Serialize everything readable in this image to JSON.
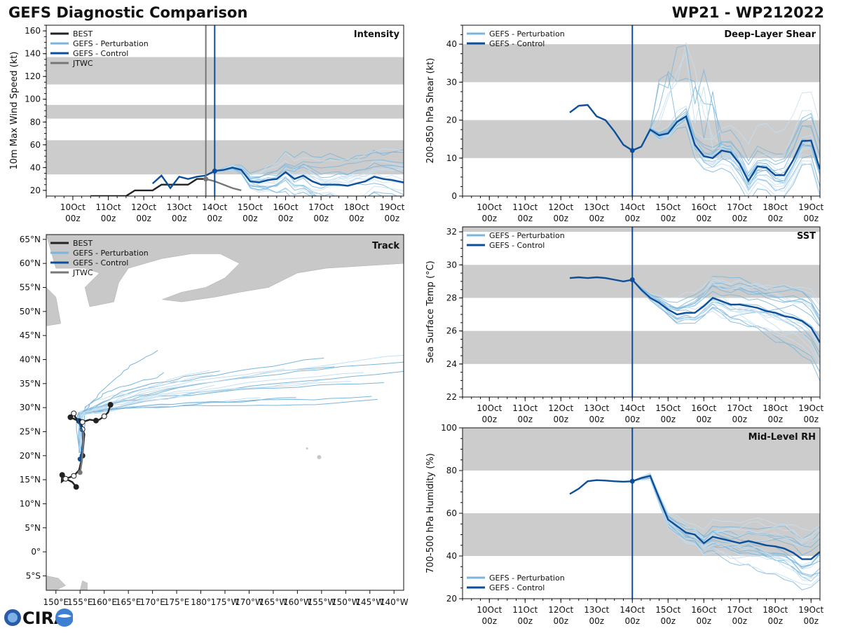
{
  "page": {
    "title_left": "GEFS Diagnostic Comparison",
    "title_right": "WP21 - WP212022",
    "logo_text": "CIRA"
  },
  "colors": {
    "best": "#222222",
    "perturbation": "#7ab6dc",
    "perturbation_light": "#c6dff1",
    "control": "#0b4f9a",
    "jtwc": "#777777",
    "band": "#cccccc",
    "land": "#c8c8c8"
  },
  "time_axis": {
    "ticks": [
      {
        "day": "10Oct",
        "hour": "00z",
        "t": 0
      },
      {
        "day": "11Oct",
        "hour": "00z",
        "t": 1
      },
      {
        "day": "12Oct",
        "hour": "00z",
        "t": 2
      },
      {
        "day": "13Oct",
        "hour": "00z",
        "t": 3
      },
      {
        "day": "14Oct",
        "hour": "00z",
        "t": 4
      },
      {
        "day": "15Oct",
        "hour": "00z",
        "t": 5
      },
      {
        "day": "16Oct",
        "hour": "00z",
        "t": 6
      },
      {
        "day": "17Oct",
        "hour": "00z",
        "t": 7
      },
      {
        "day": "18Oct",
        "hour": "00z",
        "t": 8
      },
      {
        "day": "19Oct",
        "hour": "00z",
        "t": 9
      }
    ],
    "init_t": 4.0
  },
  "chart_data": [
    {
      "id": "intensity",
      "type": "line",
      "title": "Intensity",
      "ylabel": "10m Max Wind Speed (kt)",
      "xlim": [
        -0.75,
        9.33
      ],
      "ylim": [
        15,
        165
      ],
      "yticks": [
        20,
        40,
        60,
        80,
        100,
        120,
        140,
        160
      ],
      "bands": [
        [
          34,
          64
        ],
        [
          83,
          95
        ],
        [
          113,
          137
        ]
      ],
      "jtwc_time": 3.75,
      "legend": [
        "BEST",
        "GEFS - Perturbation",
        "GEFS - Control",
        "JTWC"
      ],
      "series": [
        {
          "name": "BEST",
          "x": [
            0.5,
            1.0,
            1.5,
            1.75,
            2.0,
            2.25,
            2.5,
            2.75,
            3.0,
            3.25,
            3.5,
            3.75
          ],
          "y": [
            15,
            15,
            15,
            20,
            20,
            20,
            25,
            25,
            25,
            25,
            30,
            30
          ]
        },
        {
          "name": "JTWC",
          "x": [
            3.75,
            4.0,
            4.25,
            4.5,
            4.75
          ],
          "y": [
            30,
            28,
            25,
            22,
            20
          ]
        },
        {
          "name": "GEFS - Control",
          "x": [
            2.25,
            2.5,
            2.75,
            3.0,
            3.25,
            3.5,
            3.75,
            4.0,
            4.25,
            4.5,
            4.75,
            5.0,
            5.25,
            5.5,
            5.75,
            6.0,
            6.25,
            6.5,
            6.75,
            7.0,
            7.25,
            7.5,
            7.75,
            8.0,
            8.25,
            8.5,
            8.75,
            9.0,
            9.33
          ],
          "y": [
            26,
            33,
            22,
            32,
            30,
            32,
            33,
            37,
            38,
            40,
            38,
            28,
            27,
            29,
            30,
            36,
            30,
            33,
            28,
            25,
            25,
            25,
            24,
            26,
            28,
            32,
            30,
            29,
            27
          ]
        }
      ]
    },
    {
      "id": "shear",
      "type": "line",
      "title": "Deep-Layer Shear",
      "ylabel": "200-850 hPa Shear (kt)",
      "xlim": [
        -0.75,
        9.25
      ],
      "ylim": [
        0,
        45
      ],
      "yticks": [
        0,
        10,
        20,
        30,
        40
      ],
      "bands": [
        [
          10,
          20
        ],
        [
          30,
          40
        ]
      ],
      "legend": [
        "GEFS - Perturbation",
        "GEFS - Control"
      ],
      "series": [
        {
          "name": "GEFS - Control",
          "x": [
            2.25,
            2.5,
            2.75,
            3.0,
            3.25,
            3.5,
            3.75,
            4.0,
            4.25,
            4.5,
            4.75,
            5.0,
            5.25,
            5.5,
            5.75,
            6.0,
            6.25,
            6.5,
            6.75,
            7.0,
            7.25,
            7.5,
            7.75,
            8.0,
            8.25,
            8.5,
            8.75,
            9.0,
            9.25
          ],
          "y": [
            22,
            23.8,
            24,
            21,
            20,
            17,
            13.5,
            12,
            13,
            17.5,
            16,
            16.5,
            19.5,
            21,
            13.5,
            10.5,
            10,
            12,
            11.5,
            8.5,
            4,
            7.8,
            7.5,
            5.5,
            5.5,
            9.5,
            14.5,
            14.6,
            7
          ]
        }
      ]
    },
    {
      "id": "sst",
      "type": "line",
      "title": "SST",
      "ylabel": "Sea Surface Temp (°C)",
      "xlim": [
        -0.75,
        9.25
      ],
      "ylim": [
        22,
        32.3
      ],
      "yticks": [
        22,
        24,
        26,
        28,
        30,
        32
      ],
      "bands": [
        [
          24,
          26
        ],
        [
          28,
          30
        ],
        [
          32,
          34
        ]
      ],
      "legend": [
        "GEFS - Perturbation",
        "GEFS - Control"
      ],
      "series": [
        {
          "name": "GEFS - Control",
          "x": [
            2.25,
            2.5,
            2.75,
            3.0,
            3.25,
            3.5,
            3.75,
            4.0,
            4.25,
            4.5,
            4.75,
            5.0,
            5.25,
            5.5,
            5.75,
            6.0,
            6.25,
            6.5,
            6.75,
            7.0,
            7.25,
            7.5,
            7.75,
            8.0,
            8.25,
            8.5,
            8.75,
            9.0,
            9.25
          ],
          "y": [
            29.2,
            29.25,
            29.2,
            29.25,
            29.2,
            29.1,
            29.0,
            29.1,
            28.5,
            28.0,
            27.7,
            27.3,
            27.0,
            27.1,
            27.1,
            27.5,
            28.0,
            27.8,
            27.6,
            27.6,
            27.5,
            27.4,
            27.2,
            27.1,
            26.9,
            26.8,
            26.6,
            26.2,
            25.3
          ]
        }
      ]
    },
    {
      "id": "rh",
      "type": "line",
      "title": "Mid-Level RH",
      "ylabel": "700-500 hPa Humidity (%)",
      "xlim": [
        -0.75,
        9.25
      ],
      "ylim": [
        20,
        100
      ],
      "yticks": [
        20,
        40,
        60,
        80,
        100
      ],
      "bands": [
        [
          40,
          60
        ],
        [
          80,
          100
        ]
      ],
      "legend": [
        "GEFS - Perturbation",
        "GEFS - Control"
      ],
      "series": [
        {
          "name": "GEFS - Control",
          "x": [
            2.25,
            2.5,
            2.75,
            3.0,
            3.25,
            3.5,
            3.75,
            4.0,
            4.25,
            4.5,
            4.75,
            5.0,
            5.25,
            5.5,
            5.75,
            6.0,
            6.25,
            6.5,
            6.75,
            7.0,
            7.25,
            7.5,
            7.75,
            8.0,
            8.25,
            8.5,
            8.75,
            9.0,
            9.25
          ],
          "y": [
            69,
            71.5,
            75,
            75.5,
            75.3,
            75.0,
            74.8,
            75,
            76.5,
            77.5,
            67,
            57,
            54,
            51,
            50,
            46,
            49,
            48,
            47,
            46,
            47,
            46,
            45,
            44.5,
            43.5,
            41.5,
            38.5,
            38.5,
            42
          ]
        }
      ]
    },
    {
      "id": "track",
      "type": "line",
      "title": "Track",
      "xlabels": [
        "150°E",
        "155°E",
        "160°E",
        "165°E",
        "170°E",
        "175°E",
        "180°",
        "175°W",
        "170°W",
        "165°W",
        "160°W",
        "155°W",
        "150°W",
        "145°W",
        "140°W"
      ],
      "xticks": [
        150,
        155,
        160,
        165,
        170,
        175,
        180,
        185,
        190,
        195,
        200,
        205,
        210,
        215,
        220
      ],
      "ylabels": [
        "5°S",
        "0°",
        "5°N",
        "10°N",
        "15°N",
        "20°N",
        "25°N",
        "30°N",
        "35°N",
        "40°N",
        "45°N",
        "50°N",
        "55°N",
        "60°N",
        "65°N"
      ],
      "yticks": [
        -5,
        0,
        5,
        10,
        15,
        20,
        25,
        30,
        35,
        40,
        45,
        50,
        55,
        60,
        65
      ],
      "xlim": [
        148,
        222
      ],
      "ylim": [
        -8,
        66
      ],
      "legend": [
        "BEST",
        "GEFS - Perturbation",
        "GEFS - Control",
        "JTWC"
      ],
      "series": [
        {
          "name": "BEST",
          "lon": [
            154.2,
            153.4,
            152.0,
            151.2,
            151.3,
            152.3,
            153.7,
            154.8,
            155.5,
            155.9,
            155.5,
            155.3,
            154.8,
            154.0,
            153.7,
            153.5,
            153.0,
            154.5,
            155.5,
            157.0,
            158.3,
            159.0,
            160.0,
            160.8,
            161.3
          ],
          "lat": [
            13.5,
            14.5,
            15.2,
            14.6,
            16.0,
            15.3,
            15.8,
            17.0,
            20.0,
            24.5,
            25.5,
            26.5,
            27.2,
            28.0,
            28.8,
            29.0,
            28.0,
            27.3,
            27.0,
            27.5,
            27.3,
            27.5,
            28.2,
            29.0,
            30.6
          ]
        },
        {
          "name": "GEFS - Control",
          "lon": [
            155.0,
            155.4,
            155.6,
            155.5,
            155.0,
            154.6,
            154.5
          ],
          "lat": [
            19.3,
            21.0,
            23.0,
            25.0,
            26.5,
            27.0,
            27.8
          ]
        },
        {
          "name": "JTWC",
          "lon": [
            155.0,
            155.4,
            155.6,
            155.7,
            155.6
          ],
          "lat": [
            16.5,
            19.0,
            21.5,
            23.5,
            25.0
          ]
        }
      ]
    }
  ]
}
